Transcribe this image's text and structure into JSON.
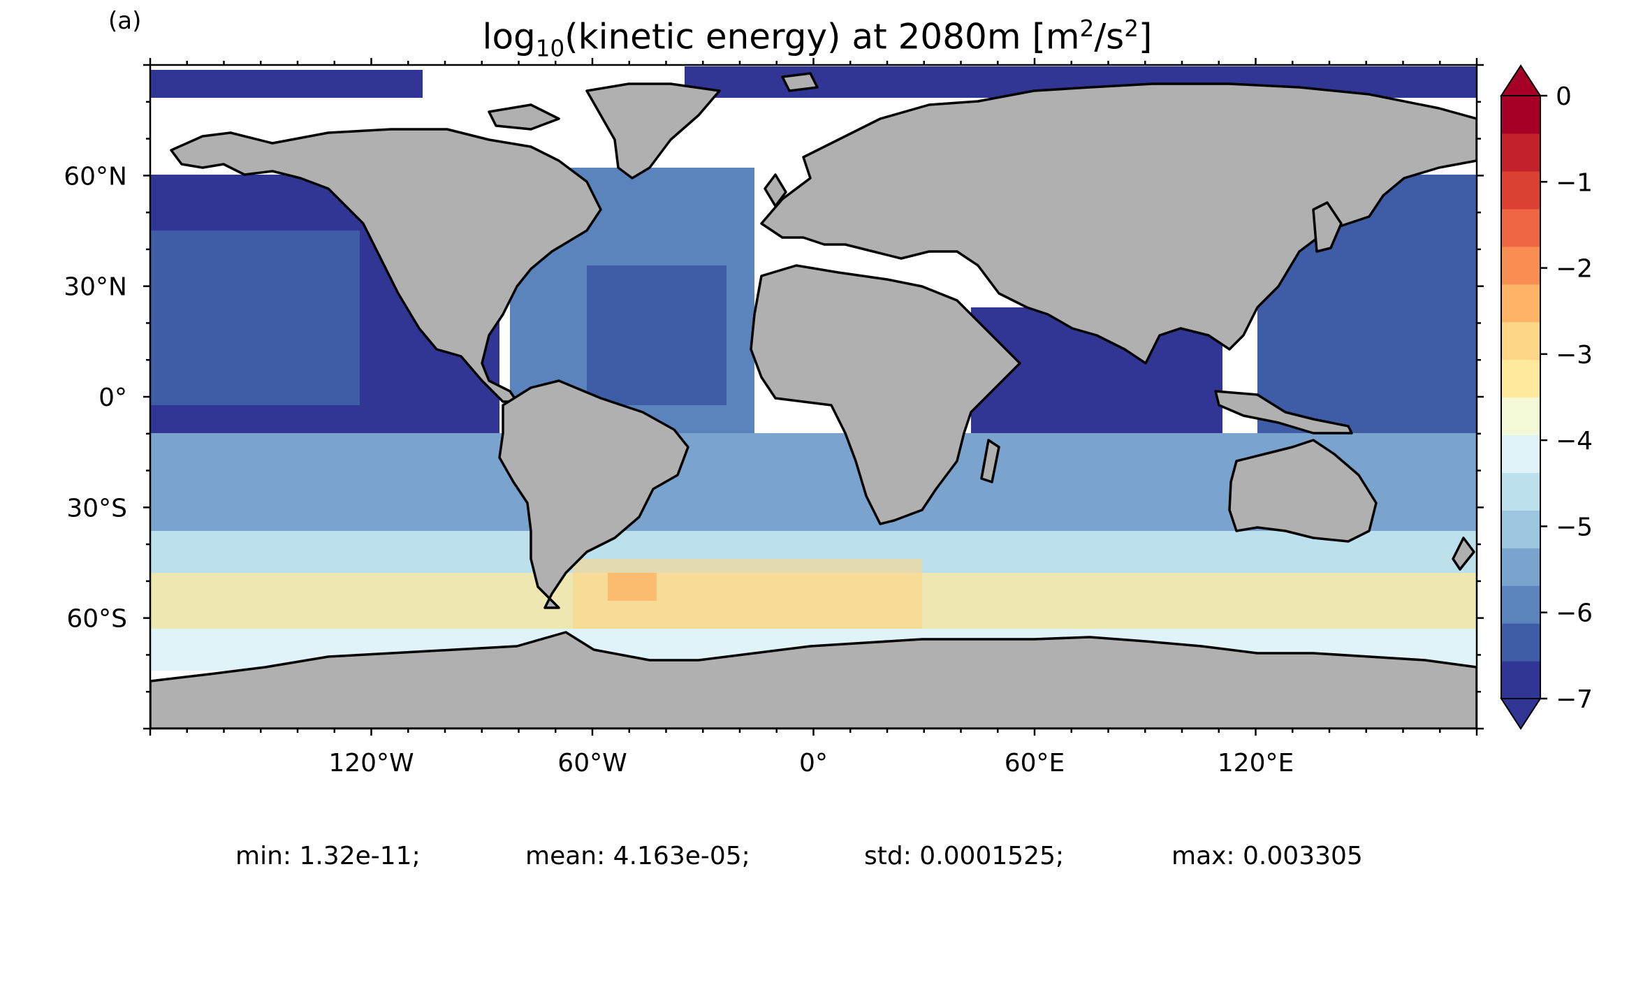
{
  "panel_label": "(a)",
  "title": {
    "prefix": "log",
    "prefix_sub": "10",
    "middle": "(kinetic energy) at 2080m [m",
    "unit_sup1": "2",
    "unit_mid": "/s",
    "unit_sup2": "2",
    "suffix": "]"
  },
  "map": {
    "projection": "equirectangular",
    "land_color": "#b0b0b0",
    "coastline_color": "#000000",
    "missing_color": "#ffffff",
    "lat_ticks": [
      "60°N",
      "30°N",
      "0°",
      "30°S",
      "60°S"
    ],
    "lon_ticks": [
      "120°W",
      "60°W",
      "0°",
      "60°E",
      "120°E"
    ]
  },
  "colorbar": {
    "tick_labels": [
      "0",
      "−1",
      "−2",
      "−3",
      "−4",
      "−5",
      "−6",
      "−7"
    ],
    "extend": "both",
    "colors": [
      "#313695",
      "#3f5ca7",
      "#5b84bd",
      "#7aa3ce",
      "#9cc5e0",
      "#bde0ed",
      "#e0f3f8",
      "#f3f9d6",
      "#fee99d",
      "#fed687",
      "#fdb466",
      "#f98e52",
      "#ef6642",
      "#db4132",
      "#c1222a",
      "#a50026"
    ]
  },
  "stats": {
    "min": "min: 1.32e-11;",
    "mean": "mean: 4.163e-05;",
    "std": "std: 0.0001525;",
    "max": "max: 0.003305"
  }
}
